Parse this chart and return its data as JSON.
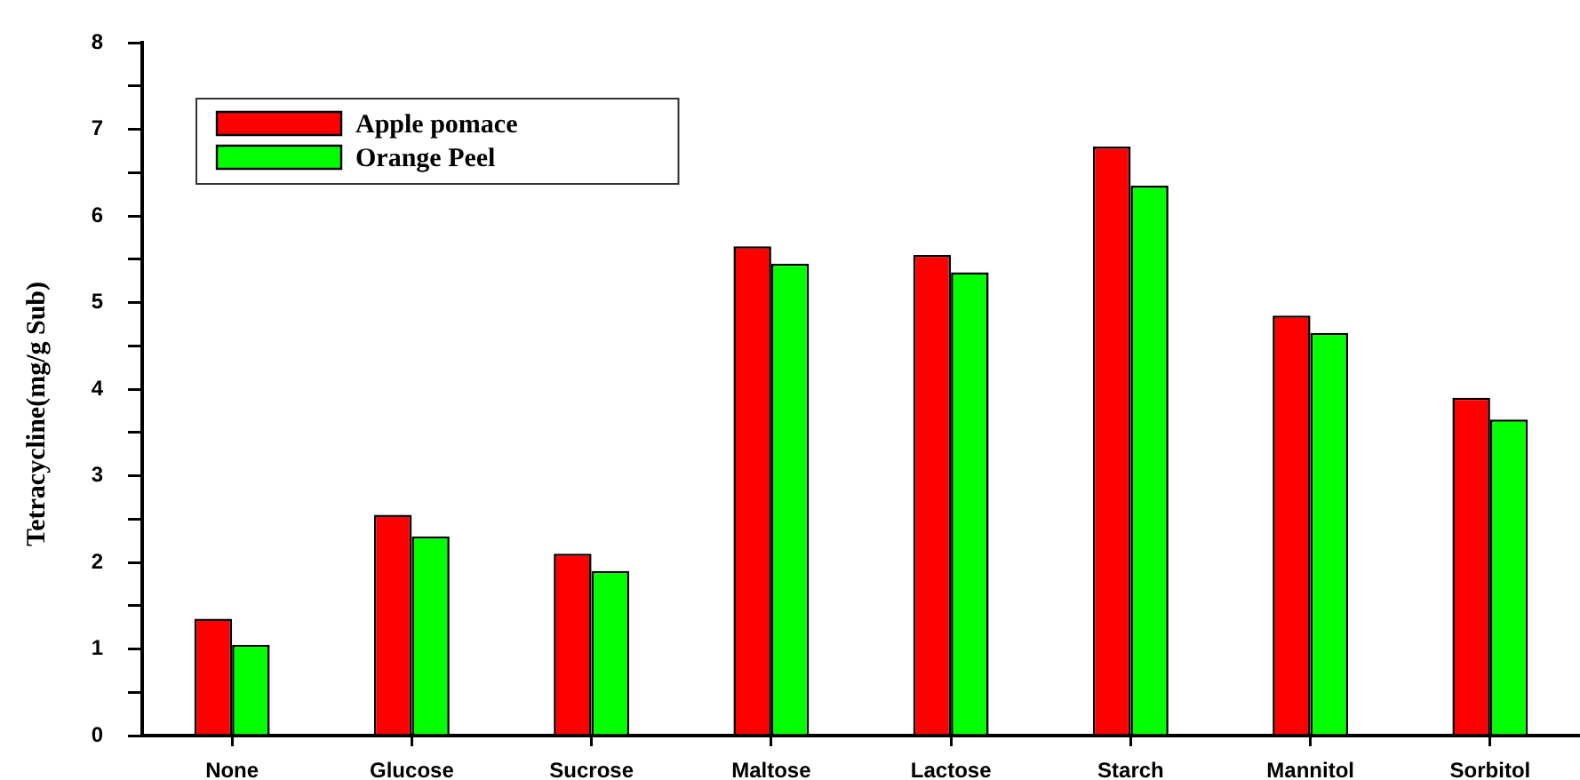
{
  "chart_data": {
    "type": "bar",
    "ylabel": "Tetracycline(mg/g Sub)",
    "categories": [
      "None",
      "Glucose",
      "Sucrose",
      "Maltose",
      "Lactose",
      "Starch",
      "Mannitol",
      "Sorbitol"
    ],
    "series": [
      {
        "name": "Apple pomace",
        "color": "#ff0000",
        "values": [
          1.35,
          2.55,
          2.1,
          5.65,
          5.55,
          6.8,
          4.85,
          3.9
        ]
      },
      {
        "name": "Orange Peel",
        "color": "#00ff00",
        "values": [
          1.05,
          2.3,
          1.9,
          5.45,
          5.35,
          6.35,
          4.65,
          3.65
        ]
      }
    ],
    "ylim": [
      0,
      8
    ],
    "yticks": [
      0,
      {
        "value": 0.5,
        "label": null
      },
      1,
      {
        "value": 1.5,
        "label": null
      },
      2,
      {
        "value": 2.5,
        "label": null
      },
      3,
      {
        "value": 3.5,
        "label": null
      },
      4,
      {
        "value": 4.5,
        "label": null
      },
      5,
      {
        "value": 5.5,
        "label": null
      },
      6,
      {
        "value": 6.5,
        "label": null
      },
      7,
      {
        "value": 7.5,
        "label": null
      },
      8
    ],
    "legend": "top left"
  }
}
